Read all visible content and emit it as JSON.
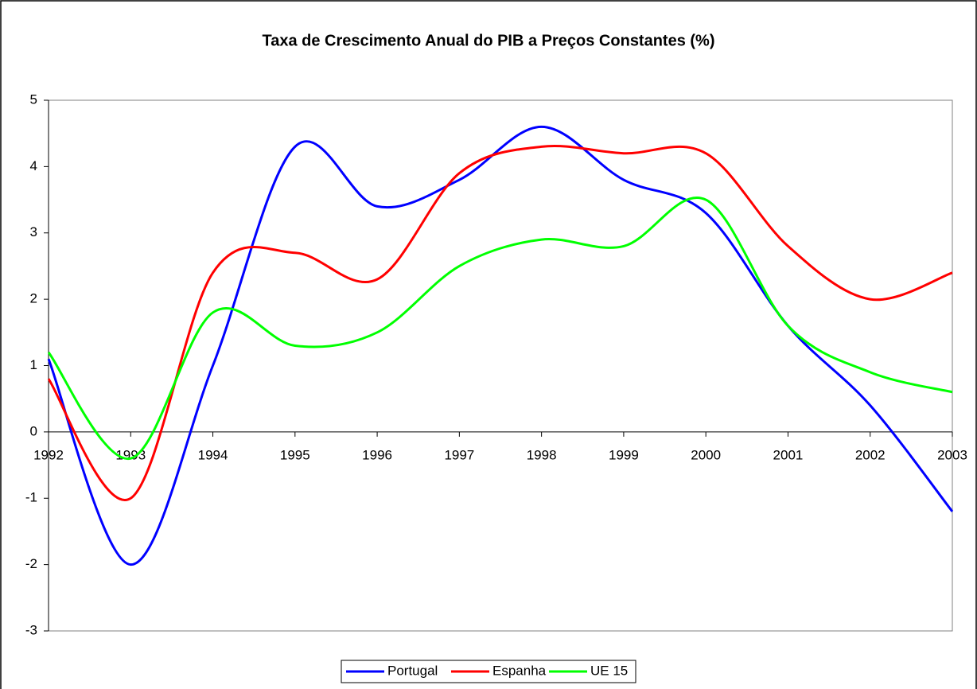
{
  "chart_data": {
    "type": "line",
    "title": "Taxa de Crescimento Anual do PIB a Preços Constantes (%)",
    "x": [
      1992,
      1993,
      1994,
      1995,
      1996,
      1997,
      1998,
      1999,
      2000,
      2001,
      2002,
      2003
    ],
    "series": [
      {
        "name": "Portugal",
        "color": "#0000ff",
        "values": [
          1.1,
          -2.0,
          1.0,
          4.3,
          3.4,
          3.8,
          4.6,
          3.8,
          3.3,
          1.6,
          0.4,
          -1.2
        ]
      },
      {
        "name": "Espanha",
        "color": "#ff0000",
        "values": [
          0.8,
          -1.0,
          2.4,
          2.7,
          2.3,
          3.9,
          4.3,
          4.2,
          4.2,
          2.8,
          2.0,
          2.4
        ]
      },
      {
        "name": "UE 15",
        "color": "#00ff00",
        "values": [
          1.2,
          -0.4,
          1.8,
          1.3,
          1.5,
          2.5,
          2.9,
          2.8,
          3.5,
          1.6,
          0.9,
          0.6
        ]
      }
    ],
    "xlim": [
      1992,
      2003
    ],
    "xticks": [
      1992,
      1993,
      1994,
      1995,
      1996,
      1997,
      1998,
      1999,
      2000,
      2001,
      2002,
      2003
    ],
    "ylim": [
      -3,
      5
    ],
    "yticks": [
      -3,
      -2,
      -1,
      0,
      1,
      2,
      3,
      4,
      5
    ],
    "grid": false,
    "smooth": true,
    "legend": "bottom"
  }
}
